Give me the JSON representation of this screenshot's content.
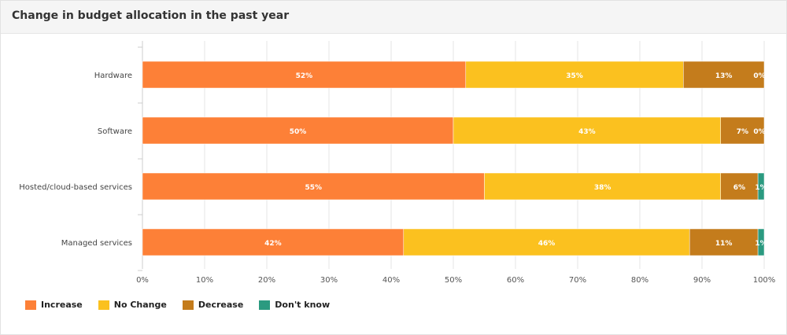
{
  "card": {
    "title": "Change in budget allocation in the past year"
  },
  "chart_data": {
    "type": "bar",
    "orientation": "horizontal",
    "stacked": true,
    "categories": [
      "Hardware",
      "Software",
      "Hosted/cloud-based services",
      "Managed services"
    ],
    "series": [
      {
        "name": "Increase",
        "color": "#fd8037",
        "values": [
          52,
          50,
          55,
          42
        ]
      },
      {
        "name": "No Change",
        "color": "#fbc11f",
        "values": [
          35,
          43,
          38,
          46
        ]
      },
      {
        "name": "Decrease",
        "color": "#c47c1c",
        "values": [
          13,
          7,
          6,
          11
        ]
      },
      {
        "name": "Don't know",
        "color": "#2b9a80",
        "values": [
          0,
          0,
          1,
          1
        ]
      }
    ],
    "data_labels": [
      [
        "52%",
        "35%",
        "13%",
        "0%"
      ],
      [
        "50%",
        "43%",
        "7%",
        "0%"
      ],
      [
        "55%",
        "38%",
        "6%",
        "1%"
      ],
      [
        "42%",
        "46%",
        "11%",
        "1%"
      ]
    ],
    "xlim": [
      0,
      100
    ],
    "xticks": [
      "0%",
      "10%",
      "20%",
      "30%",
      "40%",
      "50%",
      "60%",
      "70%",
      "80%",
      "90%",
      "100%"
    ],
    "grid": true,
    "legend_position": "bottom-left"
  }
}
